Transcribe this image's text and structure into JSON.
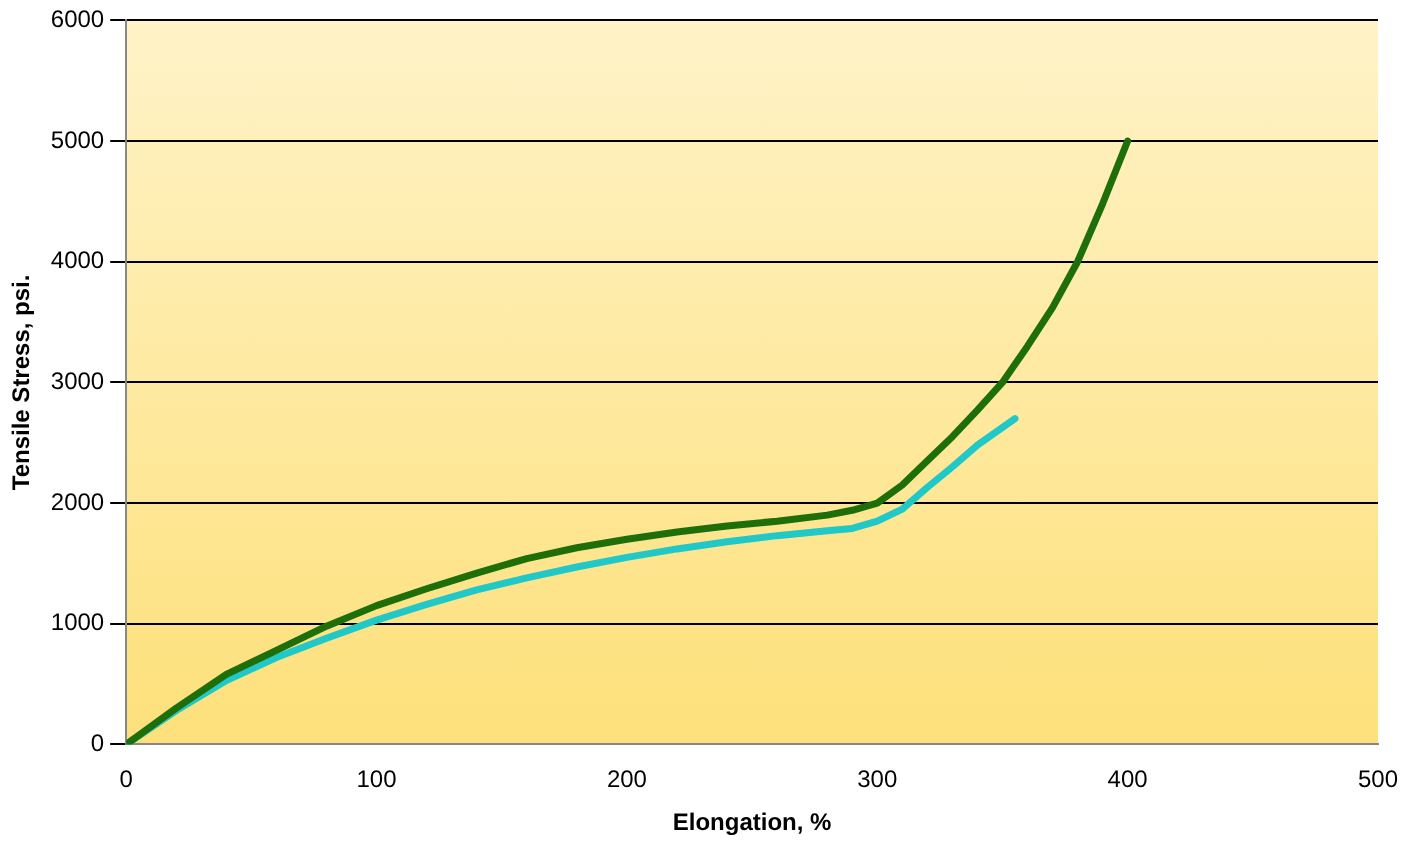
{
  "chart_data": {
    "type": "line",
    "xlabel": "Elongation, %",
    "ylabel": "Tensile Stress, psi.",
    "xlim": [
      0,
      500
    ],
    "xticks": [
      0,
      100,
      200,
      300,
      400,
      500
    ],
    "ylim": [
      0,
      6000
    ],
    "yticks": [
      0,
      1000,
      2000,
      3000,
      4000,
      5000,
      6000
    ],
    "grid": "y",
    "legend": false,
    "marker": "none",
    "series": [
      {
        "color": "#1e6e0a",
        "x": [
          0,
          20,
          40,
          60,
          80,
          100,
          120,
          140,
          160,
          180,
          200,
          220,
          240,
          260,
          280,
          290,
          300,
          310,
          320,
          330,
          340,
          350,
          360,
          370,
          380,
          390,
          400
        ],
        "values": [
          0,
          300,
          580,
          780,
          980,
          1150,
          1290,
          1420,
          1540,
          1630,
          1700,
          1760,
          1810,
          1850,
          1900,
          1940,
          2000,
          2150,
          2350,
          2550,
          2770,
          3000,
          3300,
          3620,
          4000,
          4480,
          5000
        ]
      },
      {
        "color": "#20c8c8",
        "x": [
          0,
          20,
          40,
          60,
          80,
          100,
          120,
          140,
          160,
          180,
          200,
          220,
          240,
          260,
          280,
          290,
          300,
          310,
          320,
          330,
          340,
          355
        ],
        "values": [
          0,
          280,
          530,
          720,
          880,
          1030,
          1160,
          1280,
          1380,
          1470,
          1550,
          1620,
          1680,
          1730,
          1770,
          1790,
          1850,
          1950,
          2130,
          2300,
          2480,
          2700
        ]
      }
    ]
  }
}
